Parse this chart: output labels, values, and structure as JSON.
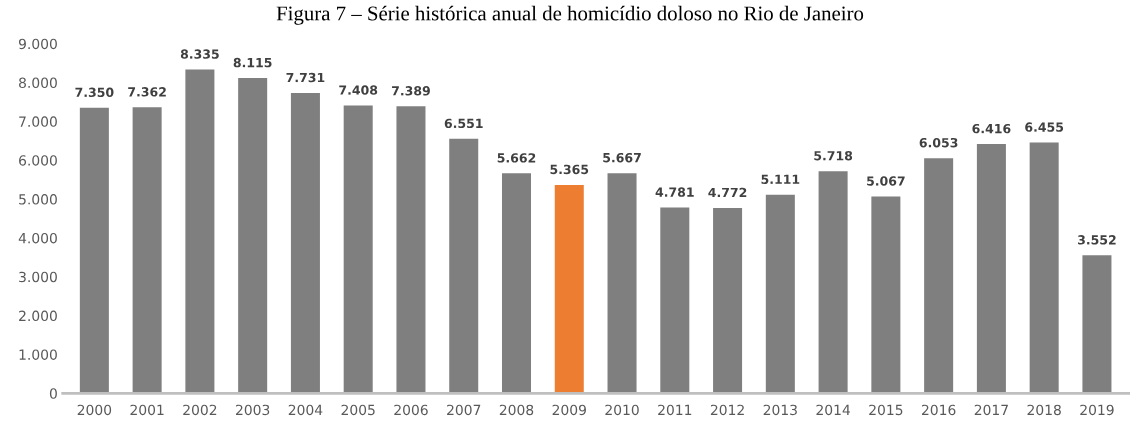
{
  "chart_data": {
    "type": "bar",
    "title": "Figura 7 – Série histórica anual de homicídio doloso no Rio de Janeiro",
    "categories": [
      "2000",
      "2001",
      "2002",
      "2003",
      "2004",
      "2005",
      "2006",
      "2007",
      "2008",
      "2009",
      "2010",
      "2011",
      "2012",
      "2013",
      "2014",
      "2015",
      "2016",
      "2017",
      "2018",
      "2019"
    ],
    "values": [
      7350,
      7362,
      8335,
      8115,
      7731,
      7408,
      7389,
      6551,
      5662,
      5365,
      5667,
      4781,
      4772,
      5111,
      5718,
      5067,
      6053,
      6416,
      6455,
      3552
    ],
    "colors": [
      "#7f7f7f",
      "#7f7f7f",
      "#7f7f7f",
      "#7f7f7f",
      "#7f7f7f",
      "#7f7f7f",
      "#7f7f7f",
      "#7f7f7f",
      "#7f7f7f",
      "#ed7d31",
      "#7f7f7f",
      "#7f7f7f",
      "#7f7f7f",
      "#7f7f7f",
      "#7f7f7f",
      "#7f7f7f",
      "#7f7f7f",
      "#7f7f7f",
      "#7f7f7f",
      "#7f7f7f"
    ],
    "value_labels": [
      "7.350",
      "7.362",
      "8.335",
      "8.115",
      "7.731",
      "7.408",
      "7.389",
      "6.551",
      "5.662",
      "5.365",
      "5.667",
      "4.781",
      "4.772",
      "5.111",
      "5.718",
      "5.067",
      "6.053",
      "6.416",
      "6.455",
      "3.552"
    ],
    "ylim": [
      0,
      9000
    ],
    "yticks": [
      0,
      {
        "value": 1000,
        "label": "1.000"
      },
      {
        "value": 2000,
        "label": "2.000"
      },
      {
        "value": 3000,
        "label": "3.000"
      },
      {
        "value": 4000,
        "label": "4.000"
      },
      {
        "value": 5000,
        "label": "5.000"
      },
      {
        "value": 6000,
        "label": "6.000"
      },
      {
        "value": 7000,
        "label": "7.000"
      },
      {
        "value": 8000,
        "label": "8.000"
      },
      {
        "value": 9000,
        "label": "9.000"
      }
    ],
    "grid": false
  }
}
